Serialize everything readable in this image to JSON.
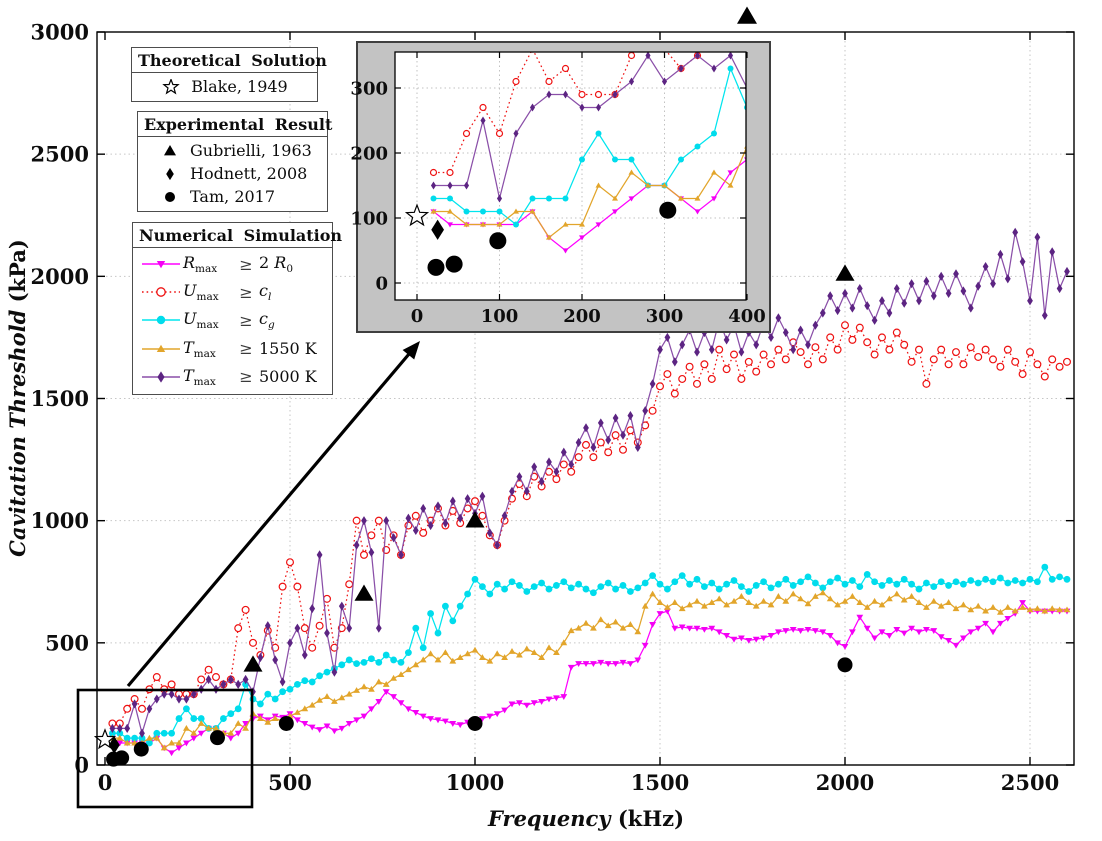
{
  "page": {
    "background": "#FFFFFF"
  },
  "legend_theoretical": {
    "title": "Theoretical  Solution",
    "entries": [
      {
        "label": "Blake, 1949",
        "marker": "star-open"
      }
    ]
  },
  "legend_experimental": {
    "title": "Experimental  Result",
    "entries": [
      {
        "label": "Gubrielli, 1963",
        "marker": "triangle-up",
        "scatter": "gubrielli"
      },
      {
        "label": "Hodnett, 2008",
        "marker": "diamond",
        "scatter": "hodnett"
      },
      {
        "label": "Tam, 2017",
        "marker": "circle",
        "scatter": "tam"
      }
    ]
  },
  "legend_numerical": {
    "title": "Numerical  Simulation",
    "entries": [
      {
        "series": "rmax_2r0",
        "lhs": "R",
        "lhs_sub": "max",
        "rel": "≥",
        "rhs_pre": "2 ",
        "rhs_var": "R",
        "rhs_sub": "0",
        "label": "R_max ≥ 2 R_0"
      },
      {
        "series": "umax_cl",
        "lhs": "U",
        "lhs_sub": "max",
        "rel": "≥",
        "rhs_pre": "",
        "rhs_var": "c",
        "rhs_sub": "l",
        "label": "U_max ≥ c_l"
      },
      {
        "series": "umax_cg",
        "lhs": "U",
        "lhs_sub": "max",
        "rel": "≥",
        "rhs_pre": "",
        "rhs_var": "c",
        "rhs_sub": "g",
        "label": "U_max ≥ c_g"
      },
      {
        "series": "tmax_1550",
        "lhs": "T",
        "lhs_sub": "max",
        "rel": "≥",
        "rhs_pre": "1550 K",
        "rhs_var": "",
        "rhs_sub": "",
        "label": "T_max ≥ 1550 K"
      },
      {
        "series": "tmax_5000",
        "lhs": "T",
        "lhs_sub": "max",
        "rel": "≥",
        "rhs_pre": "5000 K",
        "rhs_var": "",
        "rhs_sub": "",
        "label": "T_max ≥ 5000 K"
      }
    ]
  },
  "chart_data": {
    "type": "line",
    "title": "",
    "xlabel": "Frequency",
    "xlabel_unit": "(kHz)",
    "ylabel": "Cavitation Threshold",
    "ylabel_unit": "(kPa)",
    "xlim": [
      -22,
      2619
    ],
    "ylim": [
      0,
      3000
    ],
    "xticks": [
      0,
      500,
      1000,
      1500,
      2000,
      2500
    ],
    "yticks": [
      0,
      500,
      1000,
      1500,
      2000,
      2500,
      3000
    ],
    "grid": "dotted",
    "x_unit": "kHz",
    "y_unit": "kPa",
    "x_start": 20,
    "x_step": 20,
    "series": [
      {
        "name": "rmax_2r0",
        "label": "R_max ≥ 2 R_0",
        "color": "#FF00FF",
        "marker_color": "#F400F4",
        "marker": "triangle-down",
        "line": "solid",
        "values": [
          110,
          90,
          90,
          90,
          90,
          90,
          110,
          70,
          50,
          70,
          90,
          110,
          130,
          150,
          150,
          130,
          110,
          130,
          170,
          190,
          200,
          185,
          200,
          195,
          210,
          185,
          170,
          155,
          145,
          160,
          140,
          150,
          170,
          185,
          200,
          230,
          260,
          300,
          280,
          255,
          230,
          215,
          200,
          190,
          185,
          180,
          170,
          165,
          175,
          185,
          190,
          200,
          210,
          225,
          250,
          255,
          245,
          255,
          260,
          270,
          275,
          280,
          400,
          415,
          415,
          415,
          420,
          415,
          415,
          420,
          415,
          430,
          490,
          575,
          620,
          630,
          560,
          565,
          560,
          560,
          555,
          560,
          545,
          530,
          515,
          520,
          510,
          515,
          520,
          530,
          545,
          550,
          555,
          550,
          555,
          550,
          545,
          530,
          500,
          485,
          545,
          605,
          560,
          520,
          545,
          530,
          555,
          540,
          560,
          545,
          555,
          550,
          525,
          510,
          490,
          520,
          545,
          560,
          580,
          545,
          580,
          600,
          620,
          665,
          630,
          630,
          630,
          630,
          630,
          630
        ]
      },
      {
        "name": "umax_cl",
        "label": "U_max ≥ c_l",
        "color": "#EE1111",
        "marker": "circle-open",
        "line": "dotted",
        "values": [
          170,
          170,
          230,
          270,
          230,
          310,
          360,
          310,
          330,
          290,
          290,
          290,
          350,
          390,
          360,
          330,
          350,
          560,
          635,
          500,
          450,
          550,
          480,
          730,
          830,
          730,
          560,
          480,
          570,
          680,
          480,
          560,
          740,
          1000,
          860,
          940,
          1000,
          880,
          940,
          860,
          980,
          1020,
          950,
          1000,
          1050,
          980,
          1040,
          990,
          1050,
          1080,
          1020,
          940,
          900,
          1000,
          1090,
          1150,
          1100,
          1180,
          1140,
          1200,
          1170,
          1230,
          1200,
          1260,
          1310,
          1260,
          1320,
          1280,
          1350,
          1290,
          1370,
          1320,
          1390,
          1450,
          1550,
          1600,
          1520,
          1580,
          1630,
          1560,
          1640,
          1580,
          1700,
          1620,
          1680,
          1580,
          1650,
          1610,
          1680,
          1640,
          1700,
          1660,
          1730,
          1690,
          1640,
          1710,
          1660,
          1750,
          1700,
          1800,
          1740,
          1790,
          1730,
          1680,
          1750,
          1700,
          1770,
          1720,
          1650,
          1700,
          1560,
          1660,
          1700,
          1640,
          1690,
          1640,
          1710,
          1670,
          1700,
          1660,
          1630,
          1700,
          1650,
          1600,
          1690,
          1640,
          1590,
          1660,
          1630,
          1650
        ]
      },
      {
        "name": "umax_cg",
        "label": "U_max ≥ c_g",
        "color": "#00E5EE",
        "marker_color": "#00DCEC",
        "marker": "circle",
        "line": "solid",
        "values": [
          130,
          130,
          110,
          110,
          110,
          90,
          130,
          130,
          130,
          190,
          230,
          190,
          190,
          150,
          150,
          190,
          210,
          230,
          330,
          270,
          250,
          290,
          270,
          300,
          310,
          330,
          345,
          340,
          365,
          380,
          395,
          410,
          430,
          415,
          420,
          435,
          420,
          450,
          430,
          420,
          460,
          560,
          480,
          620,
          540,
          650,
          590,
          650,
          700,
          760,
          730,
          700,
          740,
          720,
          750,
          735,
          710,
          730,
          745,
          720,
          735,
          750,
          725,
          740,
          720,
          705,
          730,
          745,
          720,
          735,
          710,
          725,
          745,
          775,
          740,
          720,
          750,
          775,
          740,
          760,
          730,
          745,
          720,
          740,
          755,
          730,
          710,
          735,
          750,
          725,
          740,
          760,
          735,
          750,
          770,
          745,
          725,
          750,
          765,
          740,
          755,
          730,
          780,
          750,
          735,
          755,
          740,
          760,
          740,
          720,
          745,
          730,
          750,
          735,
          750,
          740,
          755,
          745,
          760,
          750,
          765,
          745,
          755,
          745,
          760,
          750,
          810,
          760,
          770,
          760
        ]
      },
      {
        "name": "tmax_1550",
        "label": "T_max ≥ 1550 K",
        "color": "#E2A52B",
        "marker": "triangle-up",
        "line": "solid",
        "values": [
          110,
          110,
          90,
          90,
          90,
          110,
          110,
          70,
          90,
          90,
          150,
          130,
          170,
          150,
          150,
          130,
          130,
          170,
          150,
          210,
          190,
          175,
          190,
          180,
          200,
          215,
          230,
          245,
          265,
          280,
          260,
          275,
          290,
          305,
          320,
          310,
          340,
          330,
          355,
          370,
          390,
          410,
          430,
          455,
          430,
          460,
          425,
          440,
          455,
          470,
          440,
          425,
          455,
          440,
          465,
          450,
          475,
          460,
          440,
          480,
          460,
          500,
          550,
          560,
          580,
          560,
          595,
          570,
          585,
          560,
          575,
          545,
          650,
          700,
          665,
          645,
          665,
          640,
          655,
          670,
          650,
          665,
          680,
          655,
          670,
          690,
          665,
          650,
          670,
          655,
          690,
          670,
          700,
          680,
          660,
          690,
          705,
          680,
          655,
          670,
          690,
          665,
          645,
          670,
          655,
          680,
          700,
          675,
          690,
          665,
          645,
          670,
          650,
          665,
          640,
          655,
          635,
          650,
          630,
          645,
          625,
          645,
          630,
          645,
          635,
          640,
          630,
          640,
          635,
          635
        ]
      },
      {
        "name": "tmax_5000",
        "label": "T_max ≥ 5000 K",
        "color": "#8A4FA8",
        "marker_color": "#5C2482",
        "marker": "diamond",
        "line": "solid",
        "values": [
          150,
          150,
          150,
          250,
          130,
          230,
          270,
          290,
          290,
          270,
          270,
          290,
          310,
          350,
          310,
          330,
          350,
          330,
          350,
          300,
          440,
          570,
          430,
          340,
          500,
          560,
          450,
          640,
          860,
          540,
          380,
          650,
          560,
          900,
          1000,
          870,
          560,
          1000,
          930,
          860,
          1010,
          960,
          1050,
          980,
          1060,
          990,
          1080,
          1010,
          1090,
          1030,
          1100,
          950,
          900,
          1020,
          1120,
          1180,
          1120,
          1220,
          1160,
          1240,
          1200,
          1280,
          1230,
          1320,
          1380,
          1300,
          1400,
          1330,
          1420,
          1350,
          1430,
          1300,
          1450,
          1560,
          1700,
          1750,
          1650,
          1720,
          1780,
          1690,
          1770,
          1700,
          1820,
          1740,
          1800,
          1690,
          1770,
          1720,
          1810,
          1750,
          1830,
          1770,
          1700,
          1780,
          1720,
          1800,
          1850,
          1920,
          1860,
          1930,
          1870,
          1950,
          1880,
          1820,
          1900,
          1850,
          1950,
          1890,
          1970,
          1900,
          1980,
          1920,
          2000,
          1930,
          2010,
          1940,
          1870,
          1960,
          2040,
          1970,
          2090,
          1990,
          2180,
          2060,
          1900,
          2160,
          1840,
          2100,
          1950,
          2020
        ]
      }
    ],
    "scatter": [
      {
        "name": "blake",
        "label": "Blake, 1949",
        "marker": "star-open",
        "color": "#000000",
        "points": [
          [
            0,
            103
          ]
        ]
      },
      {
        "name": "gubrielli",
        "label": "Gubrielli, 1963",
        "marker": "triangle-up",
        "color": "#000000",
        "points": [
          [
            400,
            410
          ],
          [
            700,
            700
          ],
          [
            1000,
            1000
          ],
          [
            2000,
            2010
          ]
        ]
      },
      {
        "name": "hodnett",
        "label": "Hodnett, 2008",
        "marker": "diamond",
        "color": "#000000",
        "points": [
          [
            25,
            82
          ]
        ]
      },
      {
        "name": "tam",
        "label": "Tam, 2017",
        "marker": "circle",
        "color": "#000000",
        "points": [
          [
            23,
            24
          ],
          [
            45,
            29
          ],
          [
            98,
            65
          ],
          [
            304,
            112
          ],
          [
            490,
            170
          ],
          [
            1000,
            170
          ],
          [
            2000,
            410
          ]
        ]
      }
    ],
    "inset": {
      "xlim": [
        -27,
        400
      ],
      "ylim": [
        -26,
        354
      ],
      "xticks": [
        0,
        100,
        200,
        300,
        400
      ],
      "yticks": [
        0,
        100,
        200,
        300
      ],
      "background": "#C3C3C3",
      "border": "#3F3F3F",
      "zoom_region_kHz": [
        0,
        400
      ],
      "zoom_region_kPa": [
        0,
        310
      ]
    }
  }
}
